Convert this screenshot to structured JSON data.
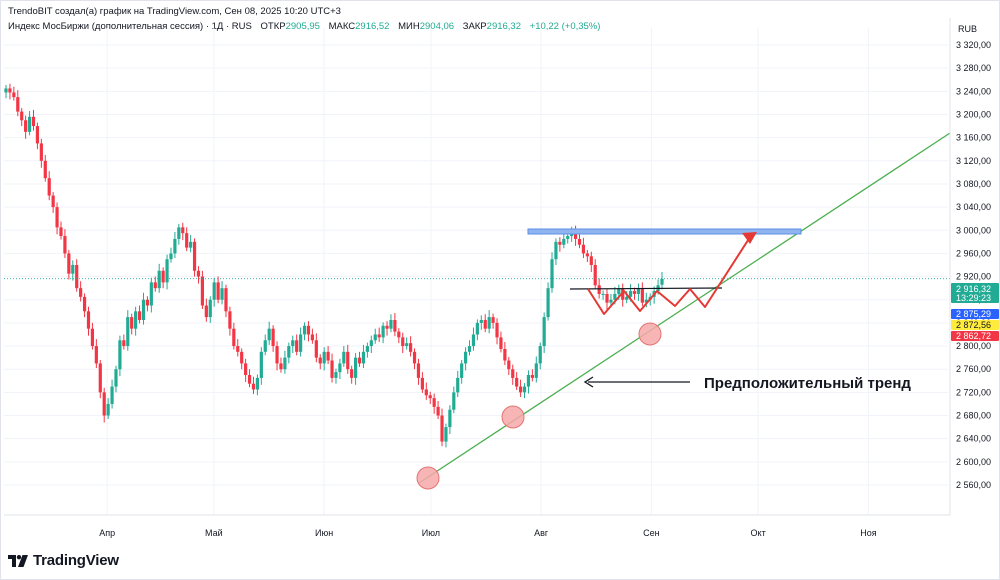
{
  "header": {
    "attribution": "TrendoBIT создал(а) график на TradingView.com, Сен 08, 2025 10:20 UTC+3"
  },
  "legend": {
    "instrument": "Индекс МосБиржи (дополнительная сессия) · 1Д · RUS",
    "open_label": "ОТКР",
    "open_value": "2905,95",
    "high_label": "МАКС",
    "high_value": "2916,52",
    "low_label": "МИН",
    "low_value": "2904,06",
    "close_label": "ЗАКР",
    "close_value": "2916,32",
    "change": "+10,22 (+0,35%)"
  },
  "footer": {
    "brand": "TradingView",
    "logo_icon": "tradingview-logo-icon"
  },
  "colors": {
    "up": "#22ab94",
    "down": "#f23645",
    "trendline": "#4caf50",
    "resistance_box": "#90b4f0",
    "resistance_box_border": "#5b8ee6",
    "projection": "#e53935",
    "circle_fill": "#f7a8a8",
    "circle_stroke": "#e57373",
    "last_price_tag": "#22ab94",
    "tag_blue": "#2962ff",
    "tag_yellow": "#ffeb3b",
    "tag_red": "#f23645"
  },
  "chart_data": {
    "type": "candlestick",
    "currency": "RUB",
    "ylim": [
      2540,
      3340
    ],
    "y_ticks": [
      "3 320,00",
      "3 280,00",
      "3 240,00",
      "3 200,00",
      "3 160,00",
      "3 120,00",
      "3 080,00",
      "3 040,00",
      "3 000,00",
      "2 960,00",
      "2 920,00",
      "2 880,00",
      "2 840,00",
      "2 800,00",
      "2 760,00",
      "2 720,00",
      "2 680,00",
      "2 640,00",
      "2 600,00",
      "2 560,00"
    ],
    "y_tick_values": [
      3320,
      3280,
      3240,
      3200,
      3160,
      3120,
      3080,
      3040,
      3000,
      2960,
      2920,
      2880,
      2840,
      2800,
      2760,
      2720,
      2680,
      2640,
      2600,
      2560
    ],
    "x_ticks": [
      "Апр",
      "Май",
      "Июн",
      "Июл",
      "Авг",
      "Сен",
      "Окт",
      "Ноя"
    ],
    "x_tick_dates": [
      "2025-04-01",
      "2025-05-01",
      "2025-06-01",
      "2025-07-01",
      "2025-08-01",
      "2025-09-01",
      "2025-10-01",
      "2025-11-01"
    ],
    "date_range": [
      "2025-03-03",
      "2025-11-20"
    ],
    "candles_close": [
      3245,
      3238,
      3230,
      3205,
      3190,
      3170,
      3196,
      3180,
      3150,
      3120,
      3090,
      3060,
      3040,
      3005,
      2990,
      2960,
      2925,
      2940,
      2900,
      2885,
      2860,
      2830,
      2800,
      2770,
      2720,
      2680,
      2700,
      2730,
      2760,
      2810,
      2800,
      2850,
      2830,
      2860,
      2845,
      2880,
      2870,
      2910,
      2900,
      2930,
      2910,
      2950,
      2960,
      2985,
      3005,
      2995,
      2970,
      2980,
      2930,
      2920,
      2870,
      2850,
      2880,
      2910,
      2880,
      2900,
      2860,
      2830,
      2800,
      2790,
      2770,
      2750,
      2735,
      2725,
      2745,
      2790,
      2810,
      2830,
      2800,
      2770,
      2760,
      2780,
      2800,
      2810,
      2790,
      2820,
      2835,
      2820,
      2810,
      2780,
      2770,
      2790,
      2775,
      2745,
      2755,
      2770,
      2790,
      2760,
      2745,
      2780,
      2770,
      2790,
      2800,
      2810,
      2820,
      2815,
      2835,
      2830,
      2845,
      2825,
      2815,
      2800,
      2805,
      2790,
      2770,
      2745,
      2725,
      2715,
      2710,
      2695,
      2680,
      2635,
      2660,
      2690,
      2720,
      2745,
      2770,
      2790,
      2800,
      2820,
      2840,
      2845,
      2830,
      2850,
      2840,
      2815,
      2795,
      2775,
      2760,
      2745,
      2730,
      2720,
      2730,
      2750,
      2745,
      2770,
      2800,
      2850,
      2900,
      2950,
      2980,
      2975,
      2985,
      2990,
      3000,
      2985,
      2975,
      2960,
      2955,
      2940,
      2905,
      2890,
      2890,
      2875,
      2880,
      2890,
      2900,
      2880,
      2885,
      2895,
      2890,
      2900,
      2875,
      2880,
      2885,
      2895,
      2905,
      2916
    ],
    "price_tags": {
      "last": "2 916,32",
      "countdown": "13:29:23",
      "blue": "2 875,29",
      "yellow": "2 872,56",
      "red": "2 862,72"
    },
    "annotation": "Предположительный тренд"
  }
}
